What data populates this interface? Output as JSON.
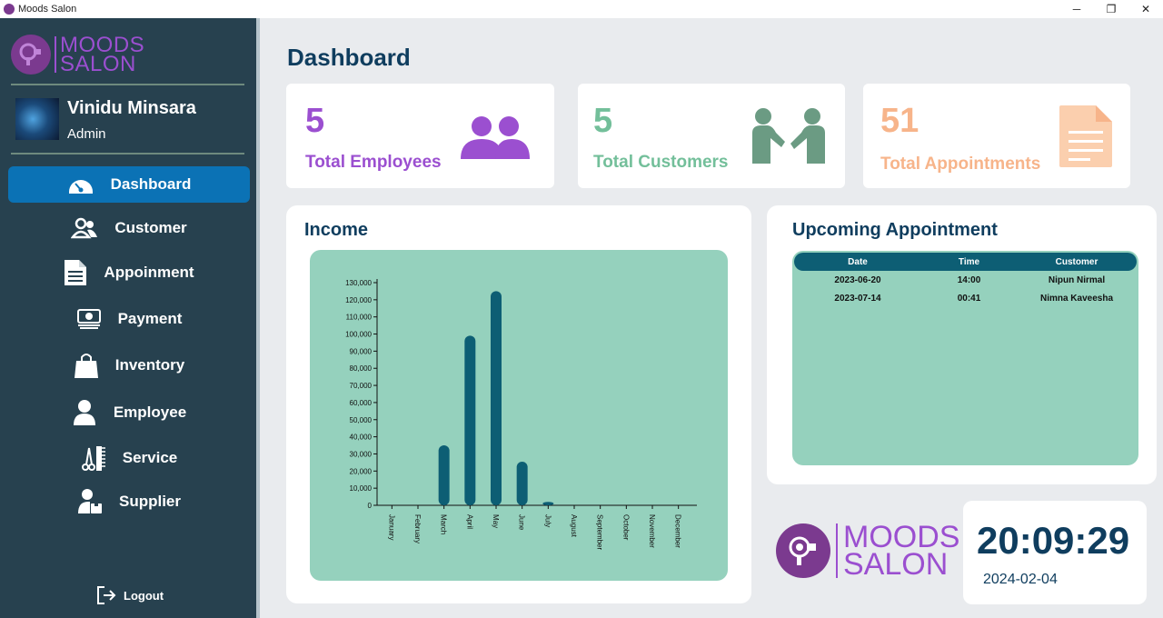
{
  "window": {
    "title": "Moods Salon",
    "minimize": "─",
    "maximize": "❐",
    "close": "✕"
  },
  "brand": {
    "line1": "MOODS",
    "line2": "SALON"
  },
  "profile": {
    "name": "Vinidu Minsara",
    "role": "Admin"
  },
  "nav": [
    {
      "label": "Dashboard",
      "icon": "speedometer-icon",
      "active": true
    },
    {
      "label": "Customer",
      "icon": "users-icon"
    },
    {
      "label": "Appoinment",
      "icon": "document-icon"
    },
    {
      "label": "Payment",
      "icon": "money-icon"
    },
    {
      "label": "Inventory",
      "icon": "shopping-bag-icon"
    },
    {
      "label": "Employee",
      "icon": "person-icon"
    },
    {
      "label": "Service",
      "icon": "scissors-comb-icon"
    },
    {
      "label": "Supplier",
      "icon": "supplier-icon"
    }
  ],
  "logout_label": "Logout",
  "page_title": "Dashboard",
  "stats": {
    "employees": {
      "value": "5",
      "label": "Total Employees",
      "color": "#9b4fd0"
    },
    "customers": {
      "value": "5",
      "label": "Total Customers",
      "color": "#73bf9a"
    },
    "appointments": {
      "value": "51",
      "label": "Total Appointments",
      "color": "#f7b48a"
    }
  },
  "income": {
    "title": "Income",
    "chart_data": {
      "type": "bar",
      "categories": [
        "January",
        "February",
        "March",
        "April",
        "May",
        "June",
        "July",
        "August",
        "September",
        "October",
        "November",
        "December"
      ],
      "values": [
        0,
        0,
        35000,
        99000,
        125000,
        25500,
        2000,
        0,
        0,
        0,
        0,
        0
      ],
      "ylim": [
        0,
        130000
      ],
      "yticks": [
        "0",
        "10,000",
        "20,000",
        "30,000",
        "40,000",
        "50,000",
        "60,000",
        "70,000",
        "80,000",
        "90,000",
        "100,000",
        "110,000",
        "120,000",
        "130,000"
      ],
      "title": "",
      "xlabel": "",
      "ylabel": "",
      "bar_color": "#0d5e74",
      "background": "#95d1bd"
    }
  },
  "appointments": {
    "title": "Upcoming Appointment",
    "columns": [
      "Date",
      "Time",
      "Customer"
    ],
    "rows": [
      [
        "2023-06-20",
        "14:00",
        "Nipun Nirmal"
      ],
      [
        "2023-07-14",
        "00:41",
        "Nimna Kaveesha"
      ]
    ]
  },
  "clock": {
    "time": "20:09:29",
    "date": "2024-02-04"
  },
  "colors": {
    "sidebar": "#27414f",
    "accent": "#0b72b5",
    "brand": "#9b4fd0",
    "navy": "#0f3d5e"
  }
}
